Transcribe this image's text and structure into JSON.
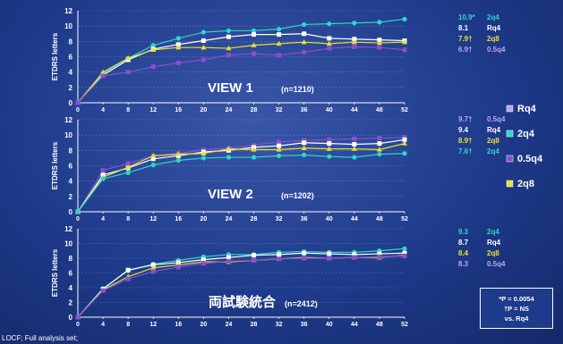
{
  "footer": "LOCF; Full analysis set;",
  "note": {
    "line1": "*P = 0.0054",
    "line2": "†P = NS",
    "line3": "vs. Rq4"
  },
  "colors": {
    "Rq4": "#b9a8f0",
    "2q4": "#2cd8c8",
    "0.5q4": "#8a4fd0",
    "2q8": "#e8e030",
    "Rq4_view2": "#ffffff",
    "Rq4_combined": "#ffffff"
  },
  "legend": [
    {
      "label": "Rq4",
      "color": "#b9a8f0"
    },
    {
      "label": "2q4",
      "color": "#2cd8c8"
    },
    {
      "label": "0.5q4",
      "color": "#8a4fd0"
    },
    {
      "label": "2q8",
      "color": "#e8e030"
    }
  ],
  "chart_data": [
    {
      "type": "line",
      "title": "VIEW 1",
      "n_label": "(n=1210)",
      "ylabel": "ETDRS letters",
      "ylim": [
        0,
        12
      ],
      "yticks": [
        "0",
        "2",
        "4",
        "6",
        "8",
        "10",
        "12"
      ],
      "x": [
        0,
        4,
        8,
        12,
        16,
        20,
        24,
        28,
        32,
        36,
        40,
        44,
        48,
        52
      ],
      "series": [
        {
          "name": "2q4",
          "color": "#2cd8c8",
          "values": [
            0,
            3.8,
            5.8,
            7.5,
            8.4,
            9.2,
            9.4,
            9.4,
            9.6,
            10.2,
            10.3,
            10.4,
            10.5,
            10.9
          ]
        },
        {
          "name": "Rq4",
          "color": "#ffffff",
          "values": [
            0,
            3.6,
            5.6,
            7.0,
            7.6,
            8.1,
            8.6,
            8.9,
            8.9,
            9.0,
            8.4,
            8.3,
            8.2,
            8.1
          ]
        },
        {
          "name": "2q8",
          "color": "#e8e030",
          "values": [
            0,
            4.0,
            5.8,
            6.9,
            7.2,
            7.2,
            7.1,
            7.5,
            7.7,
            7.9,
            7.7,
            7.9,
            7.8,
            7.9
          ]
        },
        {
          "name": "0.5q4",
          "color": "#8a4fd0",
          "values": [
            0,
            3.5,
            4.0,
            4.7,
            5.2,
            5.6,
            6.2,
            6.4,
            6.2,
            6.6,
            7.1,
            7.3,
            7.2,
            6.9
          ]
        }
      ],
      "end_labels": [
        {
          "value": "10.9*",
          "group": "2q4",
          "color": "#2cd8c8"
        },
        {
          "value": "8.1",
          "group": "Rq4",
          "color": "#ffffff"
        },
        {
          "value": "7.9†",
          "group": "2q8",
          "color": "#e8e030"
        },
        {
          "value": "6.9†",
          "group": "0.5q4",
          "color": "#b9a8f0"
        }
      ]
    },
    {
      "type": "line",
      "title": "VIEW 2",
      "n_label": "(n=1202)",
      "ylabel": "ETDRS letters",
      "ylim": [
        0,
        12
      ],
      "yticks": [
        "0",
        "2",
        "4",
        "6",
        "8",
        "10",
        "12"
      ],
      "x": [
        0,
        4,
        8,
        12,
        16,
        20,
        24,
        28,
        32,
        36,
        40,
        44,
        48,
        52
      ],
      "series": [
        {
          "name": "0.5q4",
          "color": "#8a4fd0",
          "values": [
            0,
            5.4,
            6.3,
            7.3,
            7.6,
            8.1,
            8.3,
            8.7,
            9.1,
            9.3,
            9.4,
            9.5,
            9.6,
            9.7
          ]
        },
        {
          "name": "Rq4",
          "color": "#ffffff",
          "values": [
            0,
            4.8,
            5.7,
            6.9,
            7.3,
            7.8,
            8.0,
            8.4,
            8.6,
            9.0,
            8.9,
            8.8,
            8.9,
            9.4
          ]
        },
        {
          "name": "2q8",
          "color": "#e8e030",
          "values": [
            0,
            4.5,
            5.8,
            7.3,
            7.5,
            7.6,
            8.2,
            8.1,
            8.1,
            8.3,
            8.2,
            8.2,
            8.1,
            8.9
          ]
        },
        {
          "name": "2q4",
          "color": "#2cd8c8",
          "values": [
            0,
            4.3,
            5.1,
            6.1,
            6.7,
            7.0,
            7.1,
            7.1,
            7.3,
            7.4,
            7.2,
            7.1,
            7.5,
            7.6
          ]
        }
      ],
      "end_labels": [
        {
          "value": "9.7†",
          "group": "0.5q4",
          "color": "#b9a8f0"
        },
        {
          "value": "9.4",
          "group": "Rq4",
          "color": "#ffffff"
        },
        {
          "value": "8.9†",
          "group": "2q8",
          "color": "#e8e030"
        },
        {
          "value": "7.6†",
          "group": "2q4",
          "color": "#2cd8c8"
        }
      ]
    },
    {
      "type": "line",
      "title": "両試験統合",
      "n_label": "(n=2412)",
      "ylabel": "ETDRS letters",
      "ylim": [
        0,
        12
      ],
      "yticks": [
        "0",
        "2",
        "4",
        "6",
        "8",
        "10",
        "12"
      ],
      "x": [
        0,
        4,
        8,
        12,
        16,
        20,
        24,
        28,
        32,
        36,
        40,
        44,
        48,
        52
      ],
      "series": [
        {
          "name": "2q4",
          "color": "#2cd8c8",
          "values": [
            0,
            3.9,
            6.3,
            7.2,
            7.7,
            8.2,
            8.5,
            8.5,
            8.8,
            8.9,
            8.8,
            8.8,
            9.0,
            9.3
          ]
        },
        {
          "name": "Rq4",
          "color": "#ffffff",
          "values": [
            0,
            3.8,
            6.4,
            7.1,
            7.4,
            7.8,
            8.1,
            8.4,
            8.5,
            8.7,
            8.6,
            8.5,
            8.6,
            8.7
          ]
        },
        {
          "name": "2q8",
          "color": "#e8e030",
          "values": [
            0,
            3.7,
            5.5,
            6.7,
            7.1,
            7.5,
            7.5,
            7.7,
            7.9,
            8.1,
            8.0,
            8.1,
            8.1,
            8.4
          ]
        },
        {
          "name": "0.5q4",
          "color": "#8a4fd0",
          "values": [
            0,
            3.6,
            5.2,
            6.2,
            6.8,
            7.3,
            7.6,
            7.7,
            7.9,
            8.0,
            8.0,
            8.1,
            8.2,
            8.3
          ]
        }
      ],
      "end_labels": [
        {
          "value": "9.3",
          "group": "2q4",
          "color": "#2cd8c8"
        },
        {
          "value": "8.7",
          "group": "Rq4",
          "color": "#ffffff"
        },
        {
          "value": "8.4",
          "group": "2q8",
          "color": "#e8e030"
        },
        {
          "value": "8.3",
          "group": "0.5q4",
          "color": "#b9a8f0"
        }
      ]
    }
  ]
}
